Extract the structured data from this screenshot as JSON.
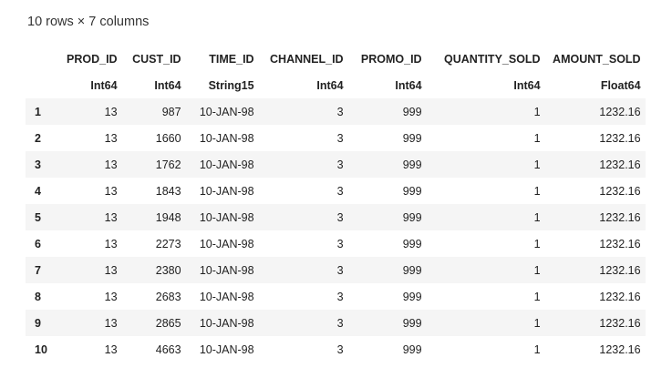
{
  "summary": "10 rows × 7 columns",
  "columns": [
    "PROD_ID",
    "CUST_ID",
    "TIME_ID",
    "CHANNEL_ID",
    "PROMO_ID",
    "QUANTITY_SOLD",
    "AMOUNT_SOLD"
  ],
  "types": [
    "Int64",
    "Int64",
    "String15",
    "Int64",
    "Int64",
    "Int64",
    "Float64"
  ],
  "rows": [
    {
      "index": "1",
      "cells": [
        "13",
        "987",
        "10-JAN-98",
        "3",
        "999",
        "1",
        "1232.16"
      ]
    },
    {
      "index": "2",
      "cells": [
        "13",
        "1660",
        "10-JAN-98",
        "3",
        "999",
        "1",
        "1232.16"
      ]
    },
    {
      "index": "3",
      "cells": [
        "13",
        "1762",
        "10-JAN-98",
        "3",
        "999",
        "1",
        "1232.16"
      ]
    },
    {
      "index": "4",
      "cells": [
        "13",
        "1843",
        "10-JAN-98",
        "3",
        "999",
        "1",
        "1232.16"
      ]
    },
    {
      "index": "5",
      "cells": [
        "13",
        "1948",
        "10-JAN-98",
        "3",
        "999",
        "1",
        "1232.16"
      ]
    },
    {
      "index": "6",
      "cells": [
        "13",
        "2273",
        "10-JAN-98",
        "3",
        "999",
        "1",
        "1232.16"
      ]
    },
    {
      "index": "7",
      "cells": [
        "13",
        "2380",
        "10-JAN-98",
        "3",
        "999",
        "1",
        "1232.16"
      ]
    },
    {
      "index": "8",
      "cells": [
        "13",
        "2683",
        "10-JAN-98",
        "3",
        "999",
        "1",
        "1232.16"
      ]
    },
    {
      "index": "9",
      "cells": [
        "13",
        "2865",
        "10-JAN-98",
        "3",
        "999",
        "1",
        "1232.16"
      ]
    },
    {
      "index": "10",
      "cells": [
        "13",
        "4663",
        "10-JAN-98",
        "3",
        "999",
        "1",
        "1232.16"
      ]
    }
  ]
}
